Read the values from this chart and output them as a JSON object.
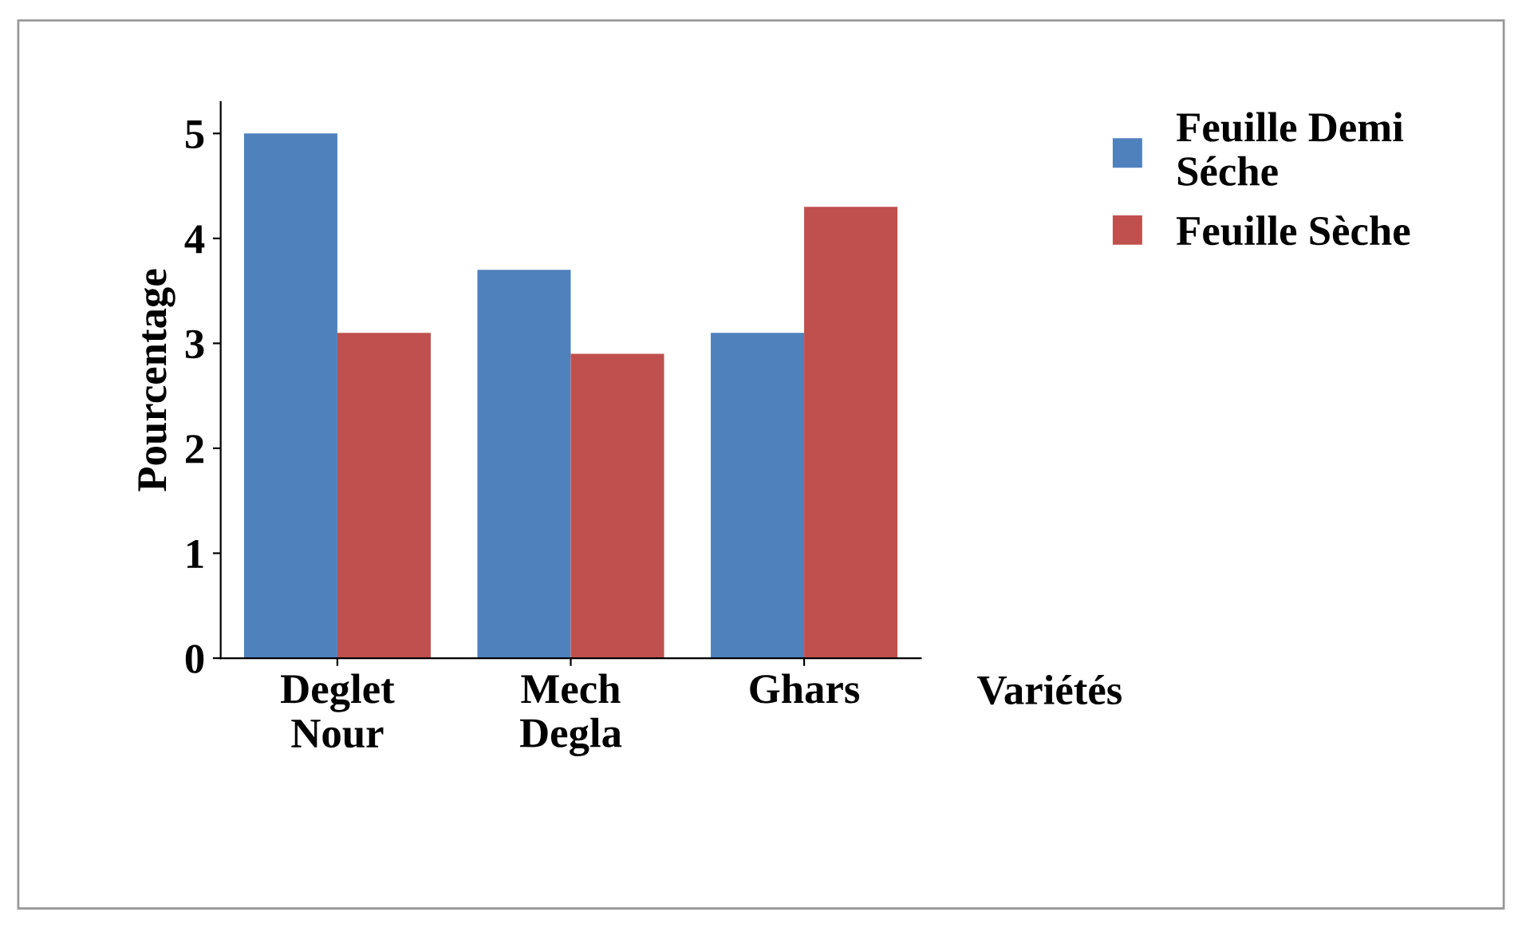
{
  "chart_data": {
    "type": "bar",
    "xlabel": "Variétés",
    "ylabel": "Pourcentage",
    "categories": [
      "Deglet\nNour",
      "Mech\nDegla",
      "Ghars"
    ],
    "series": [
      {
        "name": "Feuille Demi\nSéche",
        "color": "#4f81bd",
        "values": [
          5.0,
          3.7,
          3.1
        ]
      },
      {
        "name": "Feuille Sèche",
        "color": "#c0504d",
        "values": [
          3.1,
          2.9,
          4.3
        ]
      }
    ],
    "ylim": [
      0,
      5.3
    ],
    "yticks": [
      0,
      1,
      2,
      3,
      4,
      5
    ],
    "grid": false,
    "legend": "right"
  }
}
